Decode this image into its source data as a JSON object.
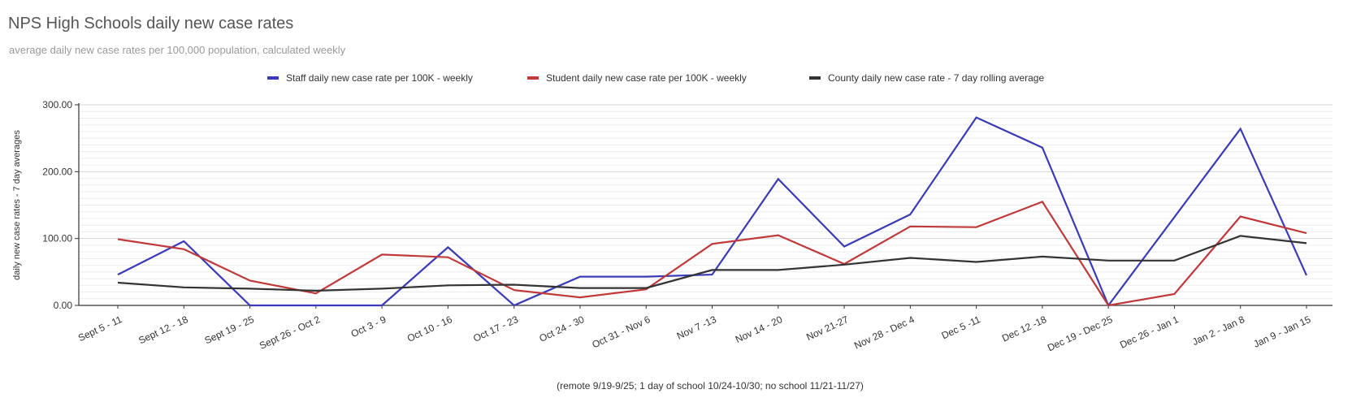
{
  "title": "NPS High Schools daily new case rates",
  "subtitle": "average daily new case rates per 100,000 population, calculated weekly",
  "footnote": "(remote 9/19-9/25; 1 day of school 10/24-10/30; no school 11/21-11/27)",
  "chart_data": {
    "type": "line",
    "ylabel": "daily new case rates - 7 day averages",
    "xlabel": "",
    "ylim": [
      0,
      300
    ],
    "yticks": [
      "0.00",
      "100.00",
      "200.00",
      "300.00"
    ],
    "grid": true,
    "legend_position": "top-center",
    "categories": [
      "Sept 5 - 11",
      "Sept 12 - 18",
      "Sept 19 - 25",
      "Sept 26 - Oct 2",
      "Oct 3 - 9",
      "Oct 10 - 16",
      "Oct 17 - 23",
      "Oct 24 - 30",
      "Oct 31 - Nov 6",
      "Nov 7 -13",
      "Nov 14 - 20",
      "Nov 21-27",
      "Nov 28 - Dec 4",
      "Dec 5 -11",
      "Dec 12 -18",
      "Dec 19 - Dec 25",
      "Dec 26 - Jan 1",
      "Jan 2 - Jan 8",
      "Jan 9 - Jan 15"
    ],
    "series": [
      {
        "name": "Staff daily new case rate per 100K - weekly",
        "color": "#3b3bb8",
        "values": [
          46,
          96,
          0,
          0,
          0,
          87,
          0,
          43,
          43,
          46,
          189,
          88,
          136,
          281,
          236,
          0,
          132,
          264,
          45
        ]
      },
      {
        "name": "Student daily new case rate per 100K - weekly",
        "color": "#c0393b",
        "values": [
          99,
          84,
          37,
          18,
          76,
          72,
          23,
          12,
          24,
          92,
          105,
          62,
          118,
          117,
          155,
          0,
          17,
          133,
          108
        ]
      },
      {
        "name": "County daily new case rate - 7 day rolling average",
        "color": "#333333",
        "values": [
          34,
          27,
          25,
          22,
          25,
          30,
          31,
          26,
          26,
          53,
          53,
          61,
          71,
          65,
          73,
          67,
          67,
          104,
          93
        ]
      }
    ]
  }
}
